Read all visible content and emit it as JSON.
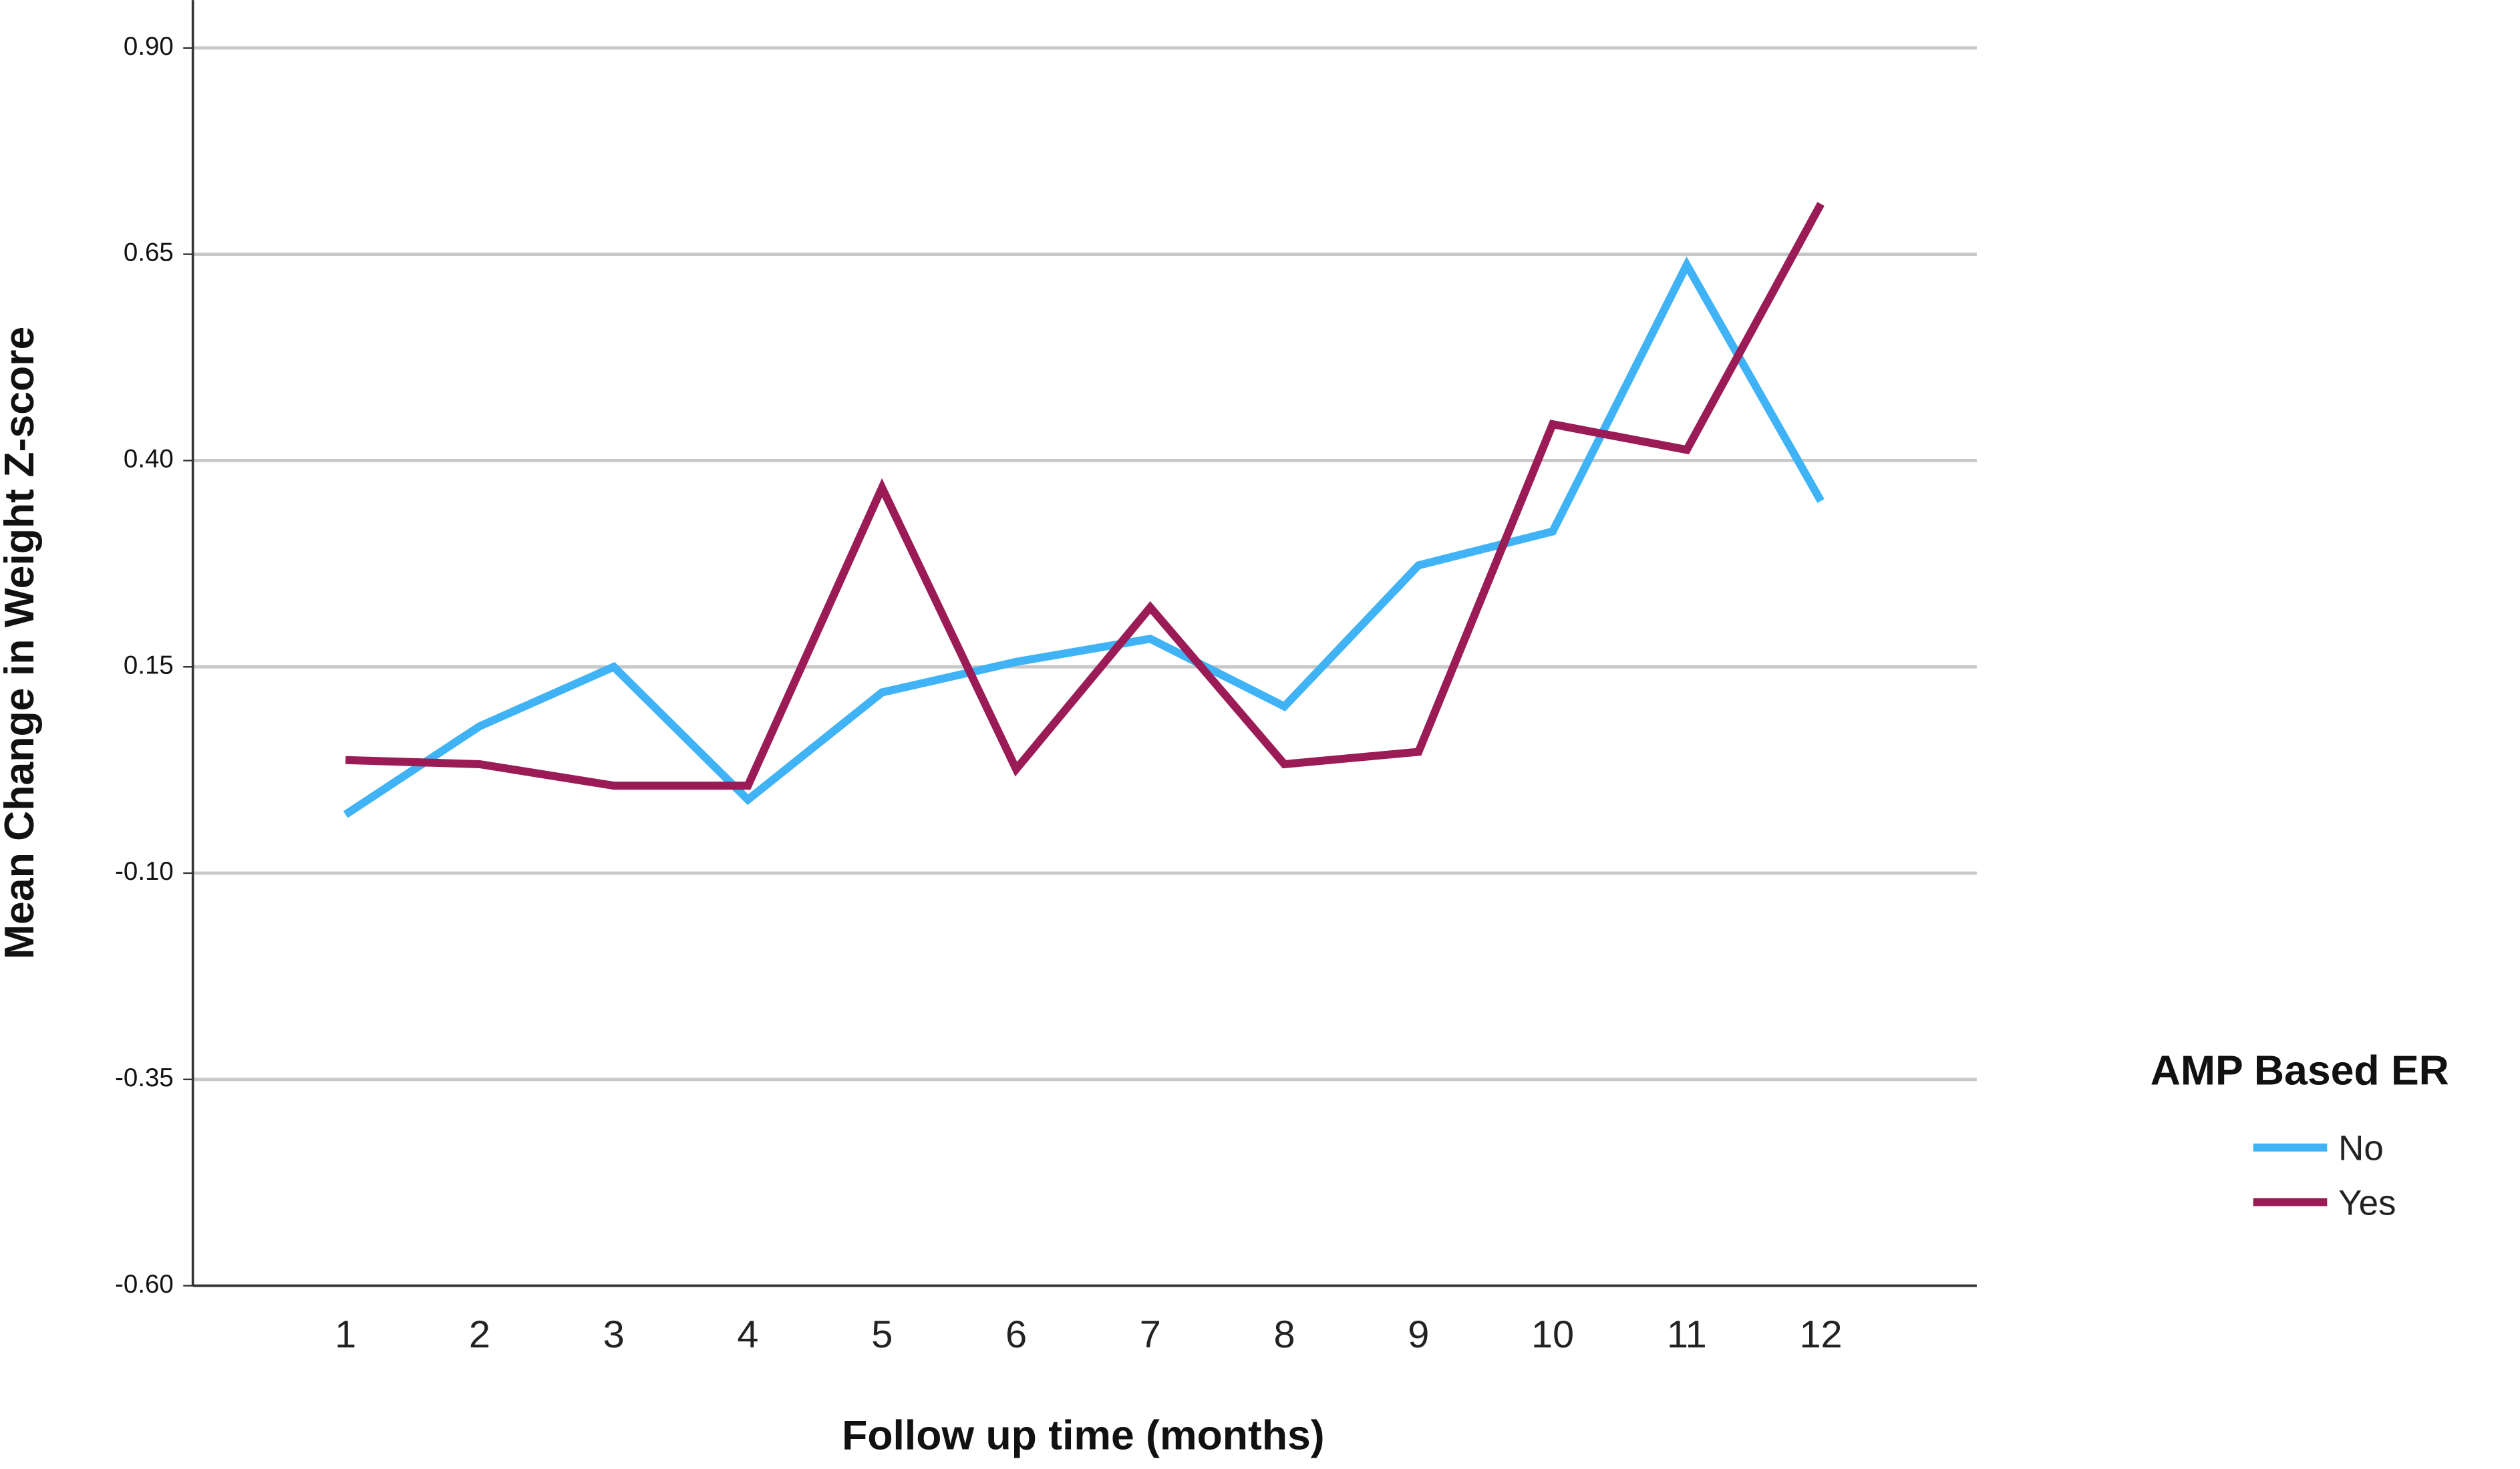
{
  "chart_data": {
    "type": "line",
    "x_label": "Follow up time (months)",
    "y_label": "Mean Change in Weight Z-score",
    "categories": [
      "1",
      "2",
      "3",
      "4",
      "5",
      "6",
      "7",
      "8",
      "9",
      "10",
      "11",
      "12"
    ],
    "series": [
      {
        "name": "No",
        "color": "#3fb3f5",
        "values": [
          -0.029,
          0.078,
          0.15,
          -0.011,
          0.119,
          0.156,
          0.184,
          0.102,
          0.273,
          0.314,
          0.637,
          0.351
        ]
      },
      {
        "name": "Yes",
        "color": "#9b1b56",
        "values": [
          0.037,
          0.032,
          0.006,
          0.006,
          0.367,
          0.026,
          0.222,
          0.032,
          0.047,
          0.444,
          0.413,
          0.711
        ]
      }
    ],
    "ylim": [
      -0.6,
      0.958
    ],
    "yticks": [
      {
        "value": 0.9,
        "label": "0.90"
      },
      {
        "value": 0.65,
        "label": "0.65"
      },
      {
        "value": 0.4,
        "label": "0.40"
      },
      {
        "value": 0.15,
        "label": "0.15"
      },
      {
        "value": -0.1,
        "label": "-0.10"
      },
      {
        "value": -0.35,
        "label": "-0.35"
      },
      {
        "value": -0.6,
        "label": "-0.60"
      }
    ],
    "grid": true,
    "legend_title": "AMP Based ER",
    "legend_position": "right"
  }
}
